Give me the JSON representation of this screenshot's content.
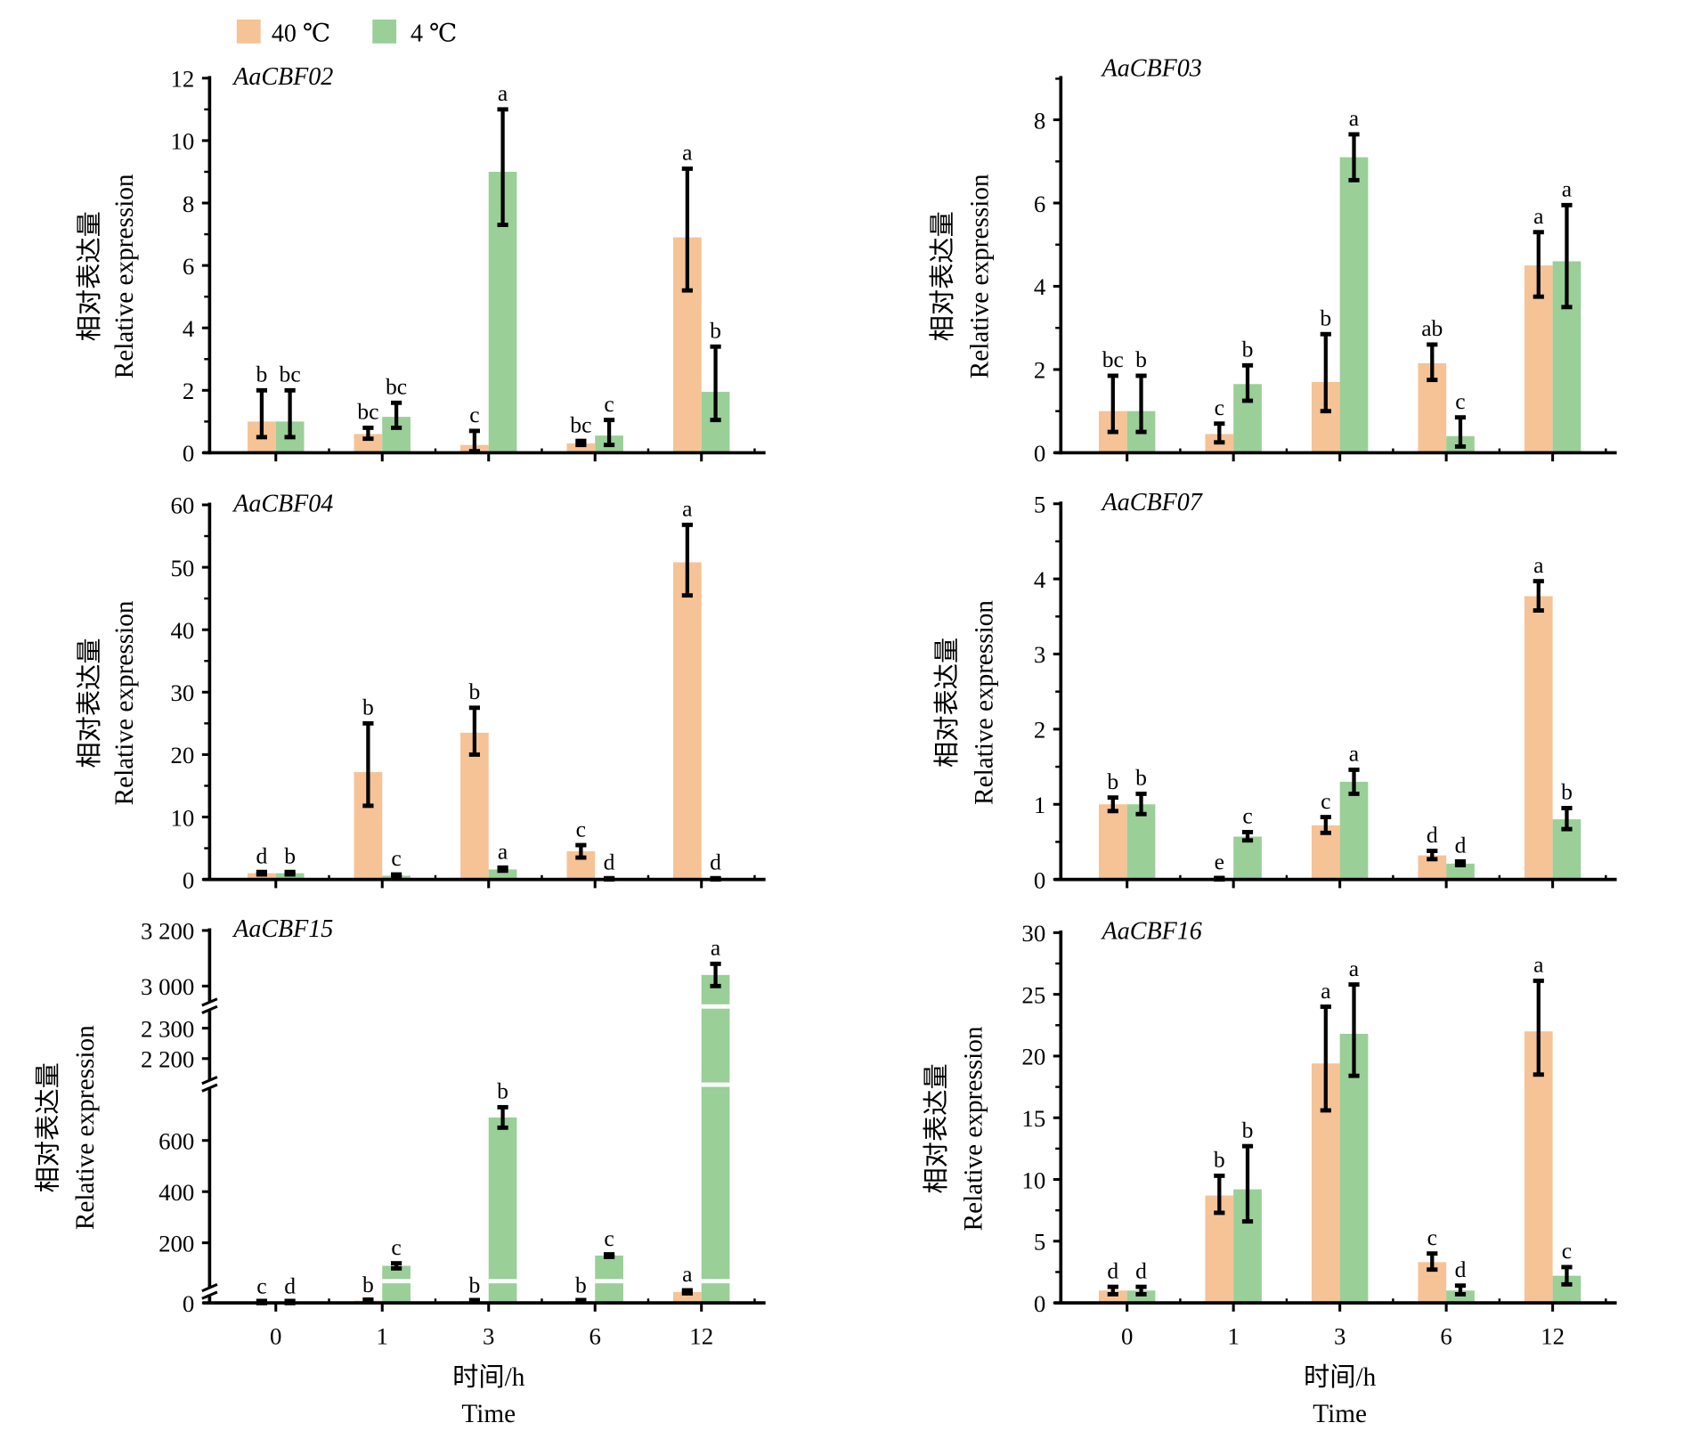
{
  "legend": [
    {
      "label": "40 ℃",
      "color": "#F5C396"
    },
    {
      "label": "4 ℃",
      "color": "#9ACF98"
    }
  ],
  "chart_data": [
    {
      "type": "bar",
      "title": "AaCBF02",
      "categories": [
        "0",
        "1",
        "3",
        "6",
        "12"
      ],
      "ylabel": [
        "相对表达量",
        "Relative expression"
      ],
      "xlabel": [],
      "ylim": [
        0,
        12
      ],
      "yticks": [
        0,
        2,
        4,
        6,
        8,
        10,
        12
      ],
      "ytick_labels": [
        "0",
        "2",
        "4",
        "6",
        "8",
        "10",
        "12"
      ],
      "series": [
        {
          "name": "40 ℃",
          "values": [
            1.0,
            0.6,
            0.25,
            0.3,
            6.9
          ],
          "error_low": [
            0.5,
            0.45,
            0.05,
            0.25,
            5.2
          ],
          "error_high": [
            2.0,
            0.8,
            0.7,
            0.38,
            9.1
          ],
          "letters": [
            "b",
            "bc",
            "c",
            "bc",
            "a"
          ]
        },
        {
          "name": "4 ℃",
          "values": [
            1.0,
            1.15,
            9.0,
            0.55,
            1.95
          ],
          "error_low": [
            0.5,
            0.8,
            7.3,
            0.25,
            1.05
          ],
          "error_high": [
            2.0,
            1.6,
            11.0,
            1.05,
            3.4
          ],
          "letters": [
            "bc",
            "bc",
            "a",
            "c",
            "b"
          ]
        }
      ]
    },
    {
      "type": "bar",
      "title": "AaCBF03",
      "categories": [
        "0",
        "1",
        "3",
        "6",
        "12"
      ],
      "ylabel": [
        "相对表达量",
        "Relative expression"
      ],
      "xlabel": [],
      "ylim": [
        0,
        9
      ],
      "yticks": [
        0,
        2,
        4,
        6,
        8
      ],
      "ytick_labels": [
        "0",
        "2",
        "4",
        "6",
        "8"
      ],
      "series": [
        {
          "name": "40 ℃",
          "values": [
            1.0,
            0.45,
            1.7,
            2.15,
            4.5
          ],
          "error_low": [
            0.5,
            0.25,
            1.0,
            1.75,
            3.75
          ],
          "error_high": [
            1.85,
            0.7,
            2.85,
            2.6,
            5.3
          ],
          "letters": [
            "bc",
            "c",
            "b",
            "ab",
            "a"
          ]
        },
        {
          "name": "4 ℃",
          "values": [
            1.0,
            1.65,
            7.1,
            0.4,
            4.6
          ],
          "error_low": [
            0.5,
            1.25,
            6.55,
            0.15,
            3.5
          ],
          "error_high": [
            1.85,
            2.1,
            7.65,
            0.85,
            5.95
          ],
          "letters": [
            "b",
            "b",
            "a",
            "c",
            "a"
          ]
        }
      ]
    },
    {
      "type": "bar",
      "title": "AaCBF04",
      "categories": [
        "0",
        "1",
        "3",
        "6",
        "12"
      ],
      "ylabel": [
        "相对表达量",
        "Relative expression"
      ],
      "xlabel": [],
      "ylim": [
        0,
        60
      ],
      "yticks": [
        0,
        10,
        20,
        30,
        40,
        50,
        60
      ],
      "ytick_labels": [
        "0",
        "10",
        "20",
        "30",
        "40",
        "50",
        "60"
      ],
      "series": [
        {
          "name": "40 ℃",
          "values": [
            1.0,
            17.2,
            23.5,
            4.5,
            50.8
          ],
          "error_low": [
            0.8,
            11.8,
            20.0,
            3.5,
            45.5
          ],
          "error_high": [
            1.2,
            25.0,
            27.5,
            5.5,
            56.8
          ],
          "letters": [
            "d",
            "b",
            "b",
            "c",
            "a"
          ]
        },
        {
          "name": "4 ℃",
          "values": [
            1.0,
            0.6,
            1.6,
            0.1,
            0.1
          ],
          "error_low": [
            0.8,
            0.4,
            1.4,
            0.0,
            0.0
          ],
          "error_high": [
            1.2,
            0.8,
            1.9,
            0.2,
            0.2
          ],
          "letters": [
            "b",
            "c",
            "a",
            "d",
            "d"
          ]
        }
      ]
    },
    {
      "type": "bar",
      "title": "AaCBF07",
      "categories": [
        "0",
        "1",
        "3",
        "6",
        "12"
      ],
      "ylabel": [
        "相对表达量",
        "Relative expression"
      ],
      "xlabel": [],
      "ylim": [
        0,
        5
      ],
      "yticks": [
        0,
        1,
        2,
        3,
        4,
        5
      ],
      "ytick_labels": [
        "0",
        "1",
        "2",
        "3",
        "4",
        "5"
      ],
      "series": [
        {
          "name": "40 ℃",
          "values": [
            1.0,
            0.01,
            0.72,
            0.32,
            3.77
          ],
          "error_low": [
            0.91,
            0.0,
            0.62,
            0.27,
            3.58
          ],
          "error_high": [
            1.09,
            0.02,
            0.83,
            0.38,
            3.97
          ],
          "letters": [
            "b",
            "e",
            "c",
            "d",
            "a"
          ]
        },
        {
          "name": "4 ℃",
          "values": [
            1.0,
            0.57,
            1.3,
            0.21,
            0.8
          ],
          "error_low": [
            0.87,
            0.52,
            1.14,
            0.19,
            0.67
          ],
          "error_high": [
            1.14,
            0.63,
            1.46,
            0.24,
            0.95
          ],
          "letters": [
            "b",
            "c",
            "a",
            "d",
            "b"
          ]
        }
      ]
    },
    {
      "type": "bar",
      "title": "AaCBF15",
      "categories": [
        "0",
        "1",
        "3",
        "6",
        "12"
      ],
      "ylabel": [
        "相对表达量",
        "Relative expression"
      ],
      "xlabel": [
        "时间/h",
        "Time"
      ],
      "ylim": [
        0,
        3200
      ],
      "y_segments": [
        [
          0,
          50
        ],
        [
          50,
          780
        ],
        [
          2150,
          2350
        ],
        [
          2950,
          3200
        ]
      ],
      "yticks": [
        0,
        200,
        400,
        600,
        2200,
        2300,
        3000,
        3200
      ],
      "ytick_labels": [
        "0",
        "200",
        "400",
        "600",
        "2 200",
        "2 300",
        "3 000",
        "3 200"
      ],
      "series": [
        {
          "name": "40 ℃",
          "values": [
            2,
            5,
            4,
            4,
            25
          ],
          "error_low": [
            2,
            5,
            4,
            4,
            22
          ],
          "error_high": [
            2,
            5,
            4,
            4,
            29
          ],
          "letters": [
            "c",
            "b",
            "b",
            "b",
            "a"
          ]
        },
        {
          "name": "4 ℃",
          "values": [
            2,
            110,
            690,
            150,
            3040
          ],
          "error_low": [
            2,
            100,
            650,
            145,
            3000
          ],
          "error_high": [
            2,
            120,
            730,
            155,
            3080
          ],
          "letters": [
            "d",
            "c",
            "b",
            "c",
            "a"
          ]
        }
      ]
    },
    {
      "type": "bar",
      "title": "AaCBF16",
      "categories": [
        "0",
        "1",
        "3",
        "6",
        "12"
      ],
      "ylabel": [
        "相对表达量",
        "Relative expression"
      ],
      "xlabel": [
        "时间/h",
        "Time"
      ],
      "ylim": [
        0,
        30
      ],
      "yticks": [
        0,
        5,
        10,
        15,
        20,
        25,
        30
      ],
      "ytick_labels": [
        "0",
        "5",
        "10",
        "15",
        "20",
        "25",
        "30"
      ],
      "series": [
        {
          "name": "40 ℃",
          "values": [
            1.0,
            8.7,
            19.4,
            3.3,
            22.0
          ],
          "error_low": [
            0.7,
            7.3,
            15.6,
            2.7,
            18.5
          ],
          "error_high": [
            1.3,
            10.3,
            24.0,
            4.0,
            26.1
          ],
          "letters": [
            "d",
            "b",
            "a",
            "c",
            "a"
          ]
        },
        {
          "name": "4 ℃",
          "values": [
            1.0,
            9.2,
            21.8,
            1.0,
            2.2
          ],
          "error_low": [
            0.7,
            6.6,
            18.4,
            0.7,
            1.5
          ],
          "error_high": [
            1.3,
            12.7,
            25.8,
            1.4,
            2.9
          ],
          "letters": [
            "d",
            "b",
            "a",
            "d",
            "c"
          ]
        }
      ]
    }
  ]
}
